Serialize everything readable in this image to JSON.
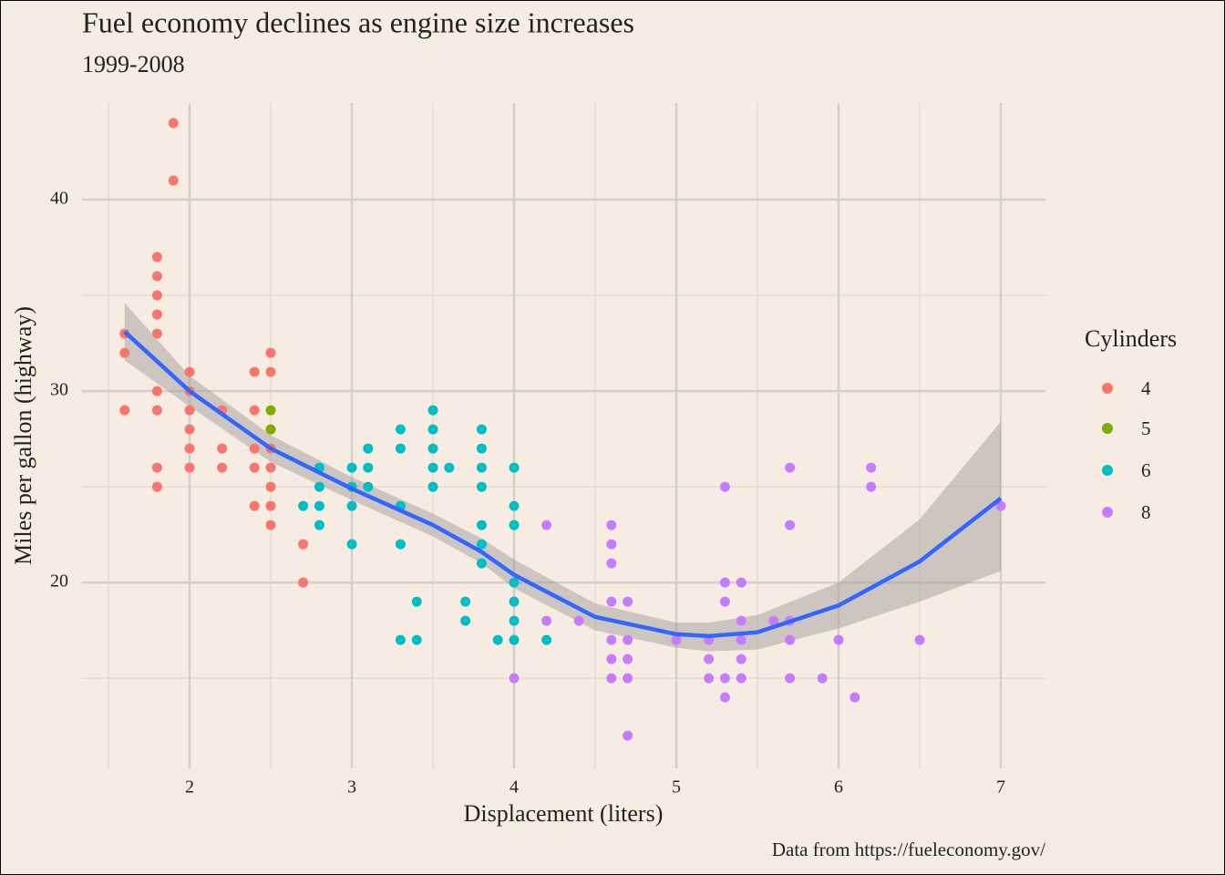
{
  "chart_data": {
    "type": "scatter",
    "title": "Fuel economy declines as engine size increases",
    "subtitle": "1999-2008",
    "caption": "Data from https://fueleconomy.gov/",
    "x_label": "Displacement (liters)",
    "y_label": "Miles per gallon (highway)",
    "legend_title": "Cylinders",
    "legend_position": "right",
    "xlim": [
      1.337,
      7.275
    ],
    "xticks": [
      2,
      3,
      4,
      5,
      6,
      7
    ],
    "x_minor_ticks": [
      1.5,
      2.5,
      3.5,
      4.5,
      5.5,
      6.5
    ],
    "ylim": [
      10.29,
      45.05
    ],
    "yticks": [
      20,
      30,
      40
    ],
    "y_minor_ticks": [
      15,
      25,
      35
    ],
    "grid": true,
    "series": [
      {
        "name": "4",
        "color": "#F8766D",
        "x": [
          1.6,
          1.6,
          1.6,
          1.8,
          1.8,
          1.8,
          1.8,
          1.8,
          1.8,
          1.8,
          1.8,
          1.8,
          1.9,
          1.9,
          2.0,
          2.0,
          2.0,
          2.0,
          2.0,
          2.0,
          2.2,
          2.2,
          2.2,
          2.4,
          2.4,
          2.4,
          2.4,
          2.4,
          2.5,
          2.5,
          2.5,
          2.5,
          2.5,
          2.5,
          2.5,
          2.7,
          2.7
        ],
        "values": [
          33,
          32,
          29,
          37,
          36,
          35,
          34,
          33,
          30,
          29,
          26,
          25,
          44,
          41,
          31,
          30,
          29,
          28,
          27,
          26,
          29,
          27,
          26,
          31,
          29,
          27,
          26,
          24,
          32,
          31,
          27,
          26,
          25,
          24,
          23,
          22,
          20
        ]
      },
      {
        "name": "5",
        "color": "#7CAE00",
        "x": [
          2.5,
          2.5
        ],
        "values": [
          29,
          28
        ]
      },
      {
        "name": "6",
        "color": "#00BFC4",
        "x": [
          2.7,
          2.8,
          2.8,
          2.8,
          2.8,
          3.0,
          3.0,
          3.0,
          3.0,
          3.1,
          3.1,
          3.1,
          3.3,
          3.3,
          3.3,
          3.3,
          3.3,
          3.4,
          3.4,
          3.5,
          3.5,
          3.5,
          3.5,
          3.5,
          3.6,
          3.7,
          3.7,
          3.8,
          3.8,
          3.8,
          3.8,
          3.8,
          3.8,
          3.8,
          3.9,
          4.0,
          4.0,
          4.0,
          4.0,
          4.0,
          4.0,
          4.0,
          4.2
        ],
        "values": [
          24,
          26,
          25,
          24,
          23,
          26,
          25,
          24,
          22,
          27,
          26,
          25,
          28,
          27,
          24,
          22,
          17,
          19,
          17,
          29,
          28,
          27,
          26,
          25,
          26,
          19,
          18,
          28,
          27,
          26,
          25,
          23,
          22,
          21,
          17,
          26,
          24,
          23,
          20,
          19,
          18,
          17,
          17
        ]
      },
      {
        "name": "8",
        "color": "#C77CFF",
        "x": [
          4.0,
          4.2,
          4.2,
          4.4,
          4.6,
          4.6,
          4.6,
          4.6,
          4.6,
          4.6,
          4.6,
          4.7,
          4.7,
          4.7,
          4.7,
          4.7,
          5.0,
          5.2,
          5.2,
          5.2,
          5.3,
          5.3,
          5.3,
          5.3,
          5.3,
          5.4,
          5.4,
          5.4,
          5.4,
          5.4,
          5.6,
          5.7,
          5.7,
          5.7,
          5.7,
          5.7,
          5.9,
          6.0,
          6.1,
          6.2,
          6.2,
          6.5,
          7.0
        ],
        "values": [
          15,
          23,
          18,
          18,
          23,
          22,
          21,
          19,
          17,
          16,
          15,
          19,
          17,
          16,
          15,
          12,
          17,
          17,
          16,
          15,
          25,
          20,
          19,
          15,
          14,
          20,
          18,
          17,
          16,
          15,
          18,
          26,
          23,
          18,
          17,
          15,
          15,
          17,
          14,
          26,
          25,
          17,
          24
        ]
      }
    ],
    "smooth": {
      "color": "#3366FF",
      "band_color": "#999999",
      "x": [
        1.6,
        2.0,
        2.5,
        3.0,
        3.5,
        3.8,
        4.0,
        4.5,
        5.0,
        5.2,
        5.5,
        6.0,
        6.5,
        7.0
      ],
      "y": [
        33.1,
        30.0,
        27.0,
        24.9,
        23.0,
        21.6,
        20.4,
        18.2,
        17.3,
        17.2,
        17.4,
        18.8,
        21.1,
        24.4
      ],
      "lower": [
        31.6,
        29.2,
        26.3,
        24.3,
        22.4,
        21.0,
        19.7,
        17.5,
        16.6,
        16.4,
        16.5,
        17.6,
        19.0,
        20.6
      ],
      "upper": [
        34.6,
        30.8,
        27.7,
        25.5,
        23.6,
        22.3,
        21.2,
        18.9,
        17.9,
        17.9,
        18.3,
        20.0,
        23.3,
        28.4
      ]
    }
  }
}
